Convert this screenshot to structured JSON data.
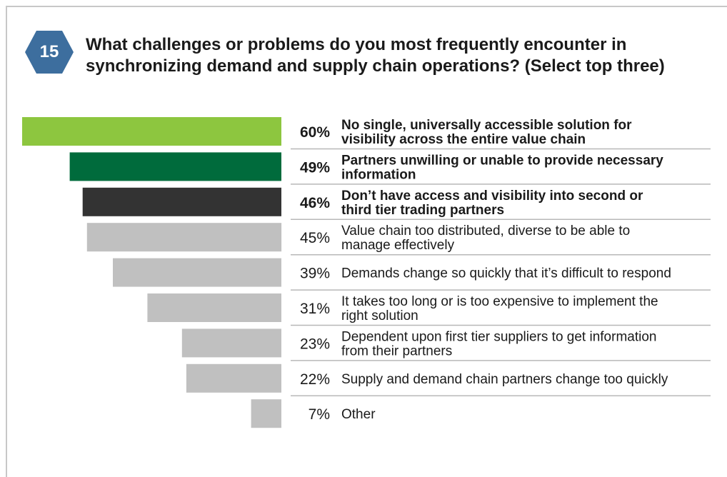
{
  "question_number": "15",
  "title": "What challenges or problems do you most frequently encounter in synchronizing demand and supply chain operations? (Select top three)",
  "colors": {
    "badge": "#3d6e9e",
    "highlight_1": "#8dc63f",
    "highlight_2": "#006b3c",
    "highlight_3": "#333333",
    "default_bar": "#c0c0c0",
    "separator": "#b8b8b8",
    "text": "#1a1a1a"
  },
  "chart_data": {
    "type": "bar",
    "orientation": "horizontal",
    "title": "What challenges or problems do you most frequently encounter in synchronizing demand and supply chain operations? (Select top three)",
    "xlabel": "",
    "ylabel": "",
    "xlim": [
      0,
      60
    ],
    "grid": false,
    "categories": [
      "No single, universally accessible solution for visibility across the entire value chain",
      "Partners unwilling or unable to provide  necessary information",
      "Don’t have access and visibility into second or third tier trading partners",
      "Value chain too distributed, diverse to be able to manage effectively",
      "Demands change so quickly that it’s difficult to respond",
      "It takes too long or is too expensive to implement the right solution",
      "Dependent upon first tier suppliers to get information from their partners",
      "Supply and demand chain partners change too quickly",
      "Other"
    ],
    "values": [
      60,
      49,
      46,
      45,
      39,
      31,
      23,
      22,
      7
    ],
    "value_labels": [
      "60%",
      "49%",
      "46%",
      "45%",
      "39%",
      "31%",
      "23%",
      "22%",
      "7%"
    ],
    "label_lines": [
      [
        "No single, universally accessible solution for",
        "visibility across the entire value chain"
      ],
      [
        "Partners unwilling or unable to provide  necessary",
        "information"
      ],
      [
        "Don’t have access and visibility into second or",
        "third tier trading partners"
      ],
      [
        "Value chain too distributed, diverse to be able to",
        "manage effectively"
      ],
      [
        "Demands change so quickly that it’s difficult to respond"
      ],
      [
        "It takes too long or is too expensive to implement the",
        "right solution"
      ],
      [
        "Dependent upon first tier suppliers to get information",
        "from their partners"
      ],
      [
        "Supply and demand chain partners change too quickly"
      ],
      [
        "Other"
      ]
    ],
    "bold": [
      true,
      true,
      true,
      false,
      false,
      false,
      false,
      false,
      false
    ],
    "bar_colors": [
      "#8dc63f",
      "#006b3c",
      "#333333",
      "#c0c0c0",
      "#c0c0c0",
      "#c0c0c0",
      "#c0c0c0",
      "#c0c0c0",
      "#c0c0c0"
    ]
  }
}
